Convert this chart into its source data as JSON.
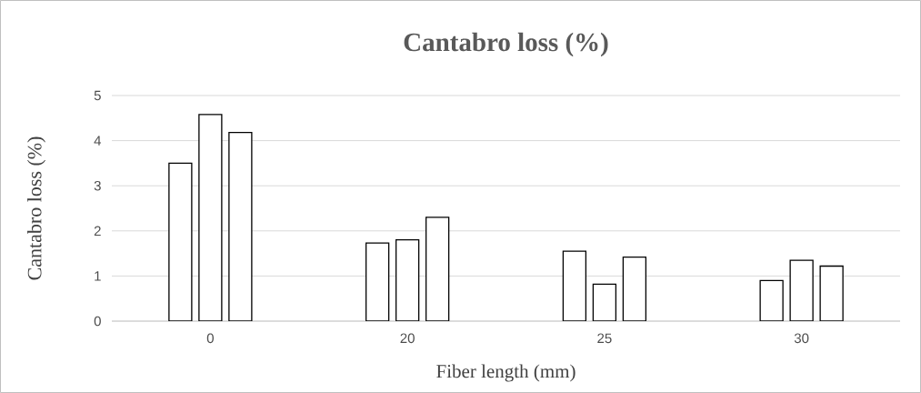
{
  "chart_data": {
    "type": "bar",
    "title": "Cantabro loss (%)",
    "xlabel": "Fiber length (mm)",
    "ylabel": "Cantabro loss (%)",
    "categories": [
      "0",
      "20",
      "25",
      "30"
    ],
    "series": [
      {
        "color": "#ffffff",
        "values": [
          3.5,
          1.73,
          1.55,
          0.9
        ]
      },
      {
        "color": "#ffffff",
        "values": [
          4.58,
          1.8,
          0.82,
          1.35
        ]
      },
      {
        "color": "#ffffff",
        "values": [
          4.18,
          2.3,
          1.42,
          1.22
        ]
      }
    ],
    "ylim": [
      0,
      5
    ],
    "yticks": [
      0,
      1,
      2,
      3,
      4,
      5
    ],
    "grid": "y"
  }
}
